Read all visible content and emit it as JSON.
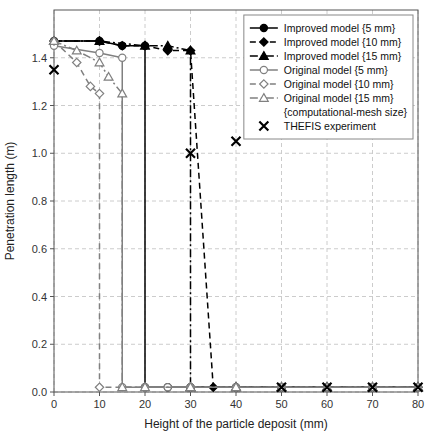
{
  "chart_data": {
    "type": "line",
    "x_label": "Height of the particle deposit (mm)",
    "y_label": "Penetration length (m)",
    "xlim": [
      0,
      80
    ],
    "ylim": [
      0,
      1.6
    ],
    "xticks": [
      0,
      10,
      20,
      30,
      40,
      50,
      60,
      70,
      80
    ],
    "yticks": [
      {
        "value": 0,
        "label": "0.0"
      },
      0.2,
      0.4,
      0.6,
      0.8,
      {
        "value": 1,
        "label": "1.0"
      },
      1.2,
      1.4
    ],
    "grid": true,
    "legend": "upper right",
    "legend_title": "{computational-mesh size}",
    "series": [
      {
        "name": "Improved model {5 mm}",
        "type": "line",
        "color": "black",
        "line_style": "solid",
        "marker": "circle",
        "x": [
          0,
          10,
          15,
          20,
          20,
          25,
          30,
          40,
          50,
          60,
          70,
          80
        ],
        "values": [
          1.47,
          1.47,
          1.45,
          1.45,
          0.02,
          0.02,
          0.02,
          0.02,
          0.02,
          0.02,
          0.02,
          0.02
        ]
      },
      {
        "name": "Improved model {10 mm}",
        "type": "line",
        "color": "black",
        "line_style": "dashed",
        "marker": "diamond",
        "x": [
          0,
          10,
          15,
          20,
          25,
          30,
          35,
          40,
          50,
          60,
          70,
          80
        ],
        "values": [
          1.47,
          1.47,
          1.45,
          1.45,
          1.43,
          1.43,
          0.02,
          0.02,
          0.02,
          0.02,
          0.02,
          0.02
        ]
      },
      {
        "name": "Improved model {15 mm}",
        "type": "line",
        "color": "black",
        "line_style": "dashdot",
        "marker": "triangle",
        "x": [
          0,
          10,
          20,
          25,
          30,
          30,
          40,
          50,
          60,
          70,
          80
        ],
        "values": [
          1.47,
          1.47,
          1.45,
          1.45,
          1.43,
          0.02,
          0.02,
          0.02,
          0.02,
          0.02,
          0.02
        ]
      },
      {
        "name": "Original model {5 mm}",
        "type": "line",
        "color": "gray",
        "line_style": "solid",
        "marker": "open-circle",
        "x": [
          0,
          10,
          15,
          15,
          20,
          25,
          30,
          40,
          50,
          60,
          70,
          80
        ],
        "values": [
          1.45,
          1.42,
          1.4,
          0.02,
          0.02,
          0.02,
          0.02,
          0.02,
          0.02,
          0.02,
          0.02,
          0.02
        ]
      },
      {
        "name": "Original model {10 mm}",
        "type": "line",
        "color": "gray",
        "line_style": "dashed",
        "marker": "open-diamond",
        "x": [
          0,
          5,
          8,
          10,
          10,
          20,
          30,
          40,
          50,
          60,
          70,
          80
        ],
        "values": [
          1.47,
          1.38,
          1.28,
          1.25,
          0.02,
          0.02,
          0.02,
          0.02,
          0.02,
          0.02,
          0.02,
          0.02
        ]
      },
      {
        "name": "Original model {15 mm}",
        "type": "line",
        "color": "gray",
        "line_style": "dashdot",
        "marker": "open-triangle",
        "x": [
          0,
          5,
          10,
          12,
          15,
          15,
          20,
          30,
          40,
          50,
          60,
          70,
          80
        ],
        "values": [
          1.47,
          1.43,
          1.38,
          1.32,
          1.25,
          0.02,
          0.02,
          0.02,
          0.02,
          0.02,
          0.02,
          0.02,
          0.02
        ]
      },
      {
        "name": "THEFIS experiment",
        "type": "scatter",
        "color": "black",
        "marker": "x",
        "x": [
          0,
          30,
          40,
          50,
          60,
          70,
          80
        ],
        "values": [
          1.35,
          1.0,
          1.05,
          0.02,
          0.02,
          0.02,
          0.02
        ]
      }
    ]
  }
}
